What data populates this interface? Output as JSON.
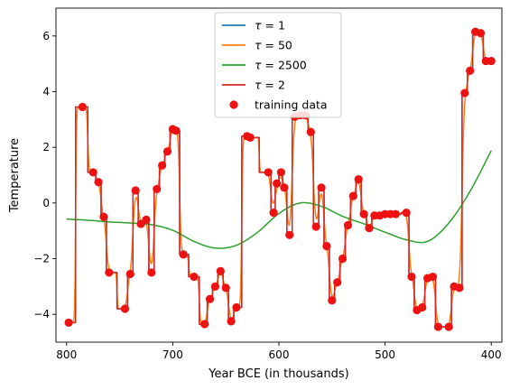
{
  "chart_data": {
    "type": "line",
    "xlabel": "Year BCE (in thousands)",
    "ylabel": "Temperature",
    "xlim": [
      810,
      390
    ],
    "ylim": [
      -5,
      7
    ],
    "x_reversed": true,
    "xticks": [
      800,
      700,
      600,
      500,
      400
    ],
    "yticks": [
      -4,
      -2,
      0,
      2,
      4,
      6
    ],
    "grid": false,
    "legend_position": "top-center",
    "training_data": {
      "name": "training data",
      "color": "#ee1111",
      "x": [
        798,
        785,
        775,
        770,
        765,
        760,
        745,
        740,
        735,
        730,
        725,
        720,
        715,
        710,
        705,
        700,
        697,
        690,
        680,
        670,
        665,
        660,
        655,
        650,
        645,
        640,
        630,
        627,
        610,
        605,
        602,
        598,
        595,
        590,
        585,
        580,
        575,
        570,
        565,
        560,
        555,
        550,
        545,
        540,
        535,
        530,
        525,
        520,
        515,
        510,
        505,
        500,
        495,
        490,
        480,
        475,
        470,
        465,
        460,
        455,
        450,
        440,
        435,
        430,
        425,
        420,
        415,
        410,
        405,
        400
      ],
      "y": [
        -4.3,
        3.45,
        1.1,
        0.75,
        -0.5,
        -2.5,
        -3.8,
        -2.55,
        0.45,
        -0.75,
        -0.6,
        -2.5,
        0.5,
        1.35,
        1.85,
        2.65,
        2.6,
        -1.85,
        -2.65,
        -4.35,
        -3.45,
        -3.0,
        -2.45,
        -3.05,
        -4.25,
        -3.75,
        2.4,
        2.35,
        1.1,
        -0.35,
        0.7,
        1.1,
        0.55,
        -1.15,
        3.1,
        3.15,
        3.15,
        2.55,
        -0.85,
        0.55,
        -1.55,
        -3.5,
        -2.85,
        -2.0,
        -0.8,
        0.25,
        0.85,
        -0.4,
        -0.9,
        -0.45,
        -0.45,
        -0.4,
        -0.4,
        -0.4,
        -0.35,
        -2.65,
        -3.85,
        -3.75,
        -2.7,
        -2.65,
        -4.45,
        -4.45,
        -3.0,
        -3.05,
        3.95,
        4.75,
        6.15,
        6.1,
        5.1,
        5.1
      ]
    },
    "series": [
      {
        "name": "τ = 1",
        "legend_symbol": "τ",
        "legend_rest": " = 1",
        "color": "#1f77b4",
        "style": "step"
      },
      {
        "name": "τ = 50",
        "legend_symbol": "τ",
        "legend_rest": " = 50",
        "color": "#ff7f0e",
        "style": "smooth"
      },
      {
        "name": "τ = 2500",
        "legend_symbol": "τ",
        "legend_rest": " = 2500",
        "color": "#2ca02c",
        "style": "very-smooth",
        "x": [
          800,
          780,
          760,
          740,
          720,
          700,
          680,
          660,
          640,
          620,
          600,
          580,
          560,
          540,
          520,
          500,
          480,
          460,
          440,
          420,
          400
        ],
        "y": [
          -0.58,
          -0.62,
          -0.68,
          -0.72,
          -0.78,
          -0.98,
          -1.38,
          -1.62,
          -1.52,
          -1.05,
          -0.38,
          0.0,
          -0.12,
          -0.48,
          -0.75,
          -1.05,
          -1.32,
          -1.38,
          -0.72,
          0.42,
          1.88
        ]
      },
      {
        "name": "τ = 2",
        "legend_symbol": "τ",
        "legend_rest": " = 2",
        "color": "#d62728",
        "style": "step"
      }
    ]
  }
}
